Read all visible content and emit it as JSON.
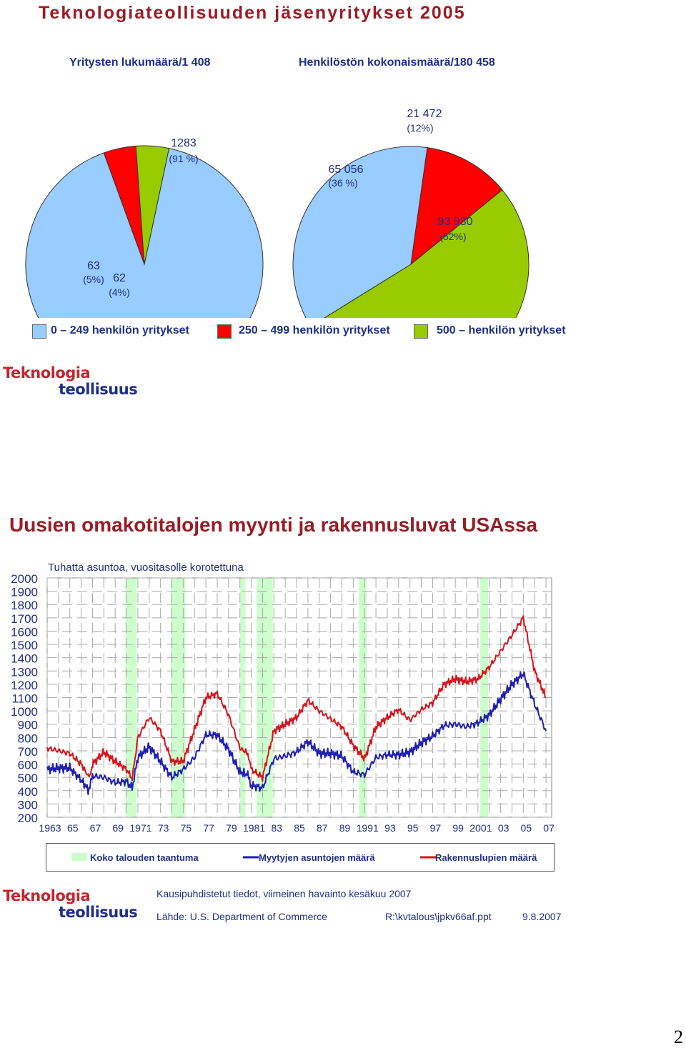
{
  "page_title": "Teknologiateollisuuden jäsenyritykset 2005",
  "logo": {
    "line1": "Teknologia",
    "line2": "teollisuus"
  },
  "pies": [
    {
      "title": "Yritysten lukumäärä/1 408",
      "slices": [
        {
          "value": 1283,
          "label": "1283",
          "pct": "(91 %)",
          "color": "#99ccff"
        },
        {
          "value": 62,
          "label": "62",
          "pct": "(4%)",
          "color": "#ff0000"
        },
        {
          "value": 63,
          "label": "63",
          "pct": "(5%)",
          "color": "#99cc00"
        }
      ]
    },
    {
      "title": "Henkilöstön kokonaismäärä/180 458",
      "slices": [
        {
          "value": 65056,
          "label": "65 056",
          "pct": "(36 %)",
          "color": "#99ccff"
        },
        {
          "value": 21472,
          "label": "21 472",
          "pct": "(12%)",
          "color": "#ff0000"
        },
        {
          "value": 93930,
          "label": "93 930",
          "pct": "(52%)",
          "color": "#99cc00"
        }
      ]
    }
  ],
  "pie_legend": [
    {
      "label": "0 – 249 henkilön yritykset",
      "color": "#99ccff"
    },
    {
      "label": "250 – 499 henkilön yritykset",
      "color": "#ff0000"
    },
    {
      "label": "500 – henkilön yritykset",
      "color": "#99cc00"
    }
  ],
  "section2_title": "Uusien omakotitalojen myynti ja rakennusluvat USAssa",
  "chart_data": {
    "type": "line",
    "subtitle": "Tuhatta asuntoa, vuositasolle korotettuna",
    "ylim": [
      200,
      2000
    ],
    "y_ticks": [
      2000,
      1900,
      1800,
      1700,
      1600,
      1500,
      1400,
      1300,
      1200,
      1100,
      1000,
      900,
      800,
      700,
      600,
      500,
      400,
      300,
      200
    ],
    "xlim": [
      1963,
      2007.5
    ],
    "x_tick_labels": [
      "1963",
      "65",
      "67",
      "69",
      "1971",
      "73",
      "75",
      "77",
      "79",
      "1981",
      "83",
      "85",
      "87",
      "89",
      "1991",
      "93",
      "95",
      "97",
      "99",
      "2001",
      "03",
      "05",
      "07"
    ],
    "grid": true,
    "recessions": [
      [
        1969.9,
        1970.9
      ],
      [
        1973.9,
        1975.2
      ],
      [
        1980.0,
        1980.5
      ],
      [
        1981.5,
        1982.9
      ],
      [
        1990.5,
        1991.2
      ],
      [
        2001.2,
        2001.9
      ]
    ],
    "series": [
      {
        "name": "Myytyjen asuntojen määrä",
        "color": "#1f1fb4",
        "x": [
          1963,
          1964,
          1965,
          1966,
          1966.7,
          1967,
          1968,
          1969,
          1970,
          1970.5,
          1971,
          1972,
          1973,
          1974,
          1975,
          1976,
          1977,
          1978,
          1979,
          1980,
          1980.7,
          1981,
          1982,
          1983,
          1984,
          1985,
          1986,
          1987,
          1988,
          1989,
          1990,
          1991,
          1992,
          1993,
          1994,
          1995,
          1996,
          1997,
          1998,
          1999,
          2000,
          2001,
          2002,
          2003,
          2004,
          2005,
          2006,
          2007
        ],
        "y": [
          560,
          570,
          570,
          480,
          400,
          510,
          500,
          460,
          470,
          420,
          650,
          730,
          620,
          500,
          560,
          650,
          820,
          820,
          710,
          540,
          520,
          440,
          420,
          640,
          660,
          690,
          770,
          680,
          680,
          660,
          540,
          520,
          650,
          670,
          670,
          690,
          760,
          810,
          890,
          900,
          880,
          910,
          970,
          1090,
          1200,
          1280,
          1050,
          850
        ]
      },
      {
        "name": "Rakennuslupien määrä",
        "color": "#d8141c",
        "x": [
          1963,
          1964,
          1965,
          1966,
          1966.7,
          1967,
          1968,
          1969,
          1970,
          1970.5,
          1971,
          1972,
          1973,
          1974,
          1975,
          1976,
          1977,
          1978,
          1979,
          1980,
          1980.7,
          1981,
          1982,
          1983,
          1984,
          1985,
          1986,
          1987,
          1988,
          1989,
          1990,
          1991,
          1992,
          1993,
          1994,
          1995,
          1996,
          1997,
          1998,
          1999,
          2000,
          2001,
          2002,
          2003,
          2004,
          2005,
          2006,
          2007
        ],
        "y": [
          720,
          700,
          680,
          600,
          500,
          600,
          690,
          620,
          560,
          490,
          800,
          950,
          850,
          620,
          620,
          860,
          1100,
          1130,
          970,
          720,
          680,
          560,
          500,
          850,
          900,
          950,
          1080,
          1000,
          940,
          880,
          740,
          640,
          880,
          950,
          1010,
          930,
          1010,
          1060,
          1200,
          1240,
          1220,
          1240,
          1330,
          1450,
          1570,
          1700,
          1300,
          1100
        ]
      }
    ]
  },
  "chart_legend": [
    {
      "label": "Koko talouden taantuma",
      "kind": "band",
      "color": "#ccffcc"
    },
    {
      "label": "Myytyjen asuntojen määrä",
      "kind": "line",
      "color": "#1f1fb4"
    },
    {
      "label": "Rakennuslupien määrä",
      "kind": "line",
      "color": "#d8141c"
    }
  ],
  "footer": {
    "note": "Kausipuhdistetut tiedot, viimeinen havainto kesäkuu 2007",
    "source": "Lähde: U.S. Department of Commerce",
    "file": "R:\\kvtalous\\jpkv66af.ppt",
    "date": "9.8.2007"
  },
  "page_number": "2"
}
